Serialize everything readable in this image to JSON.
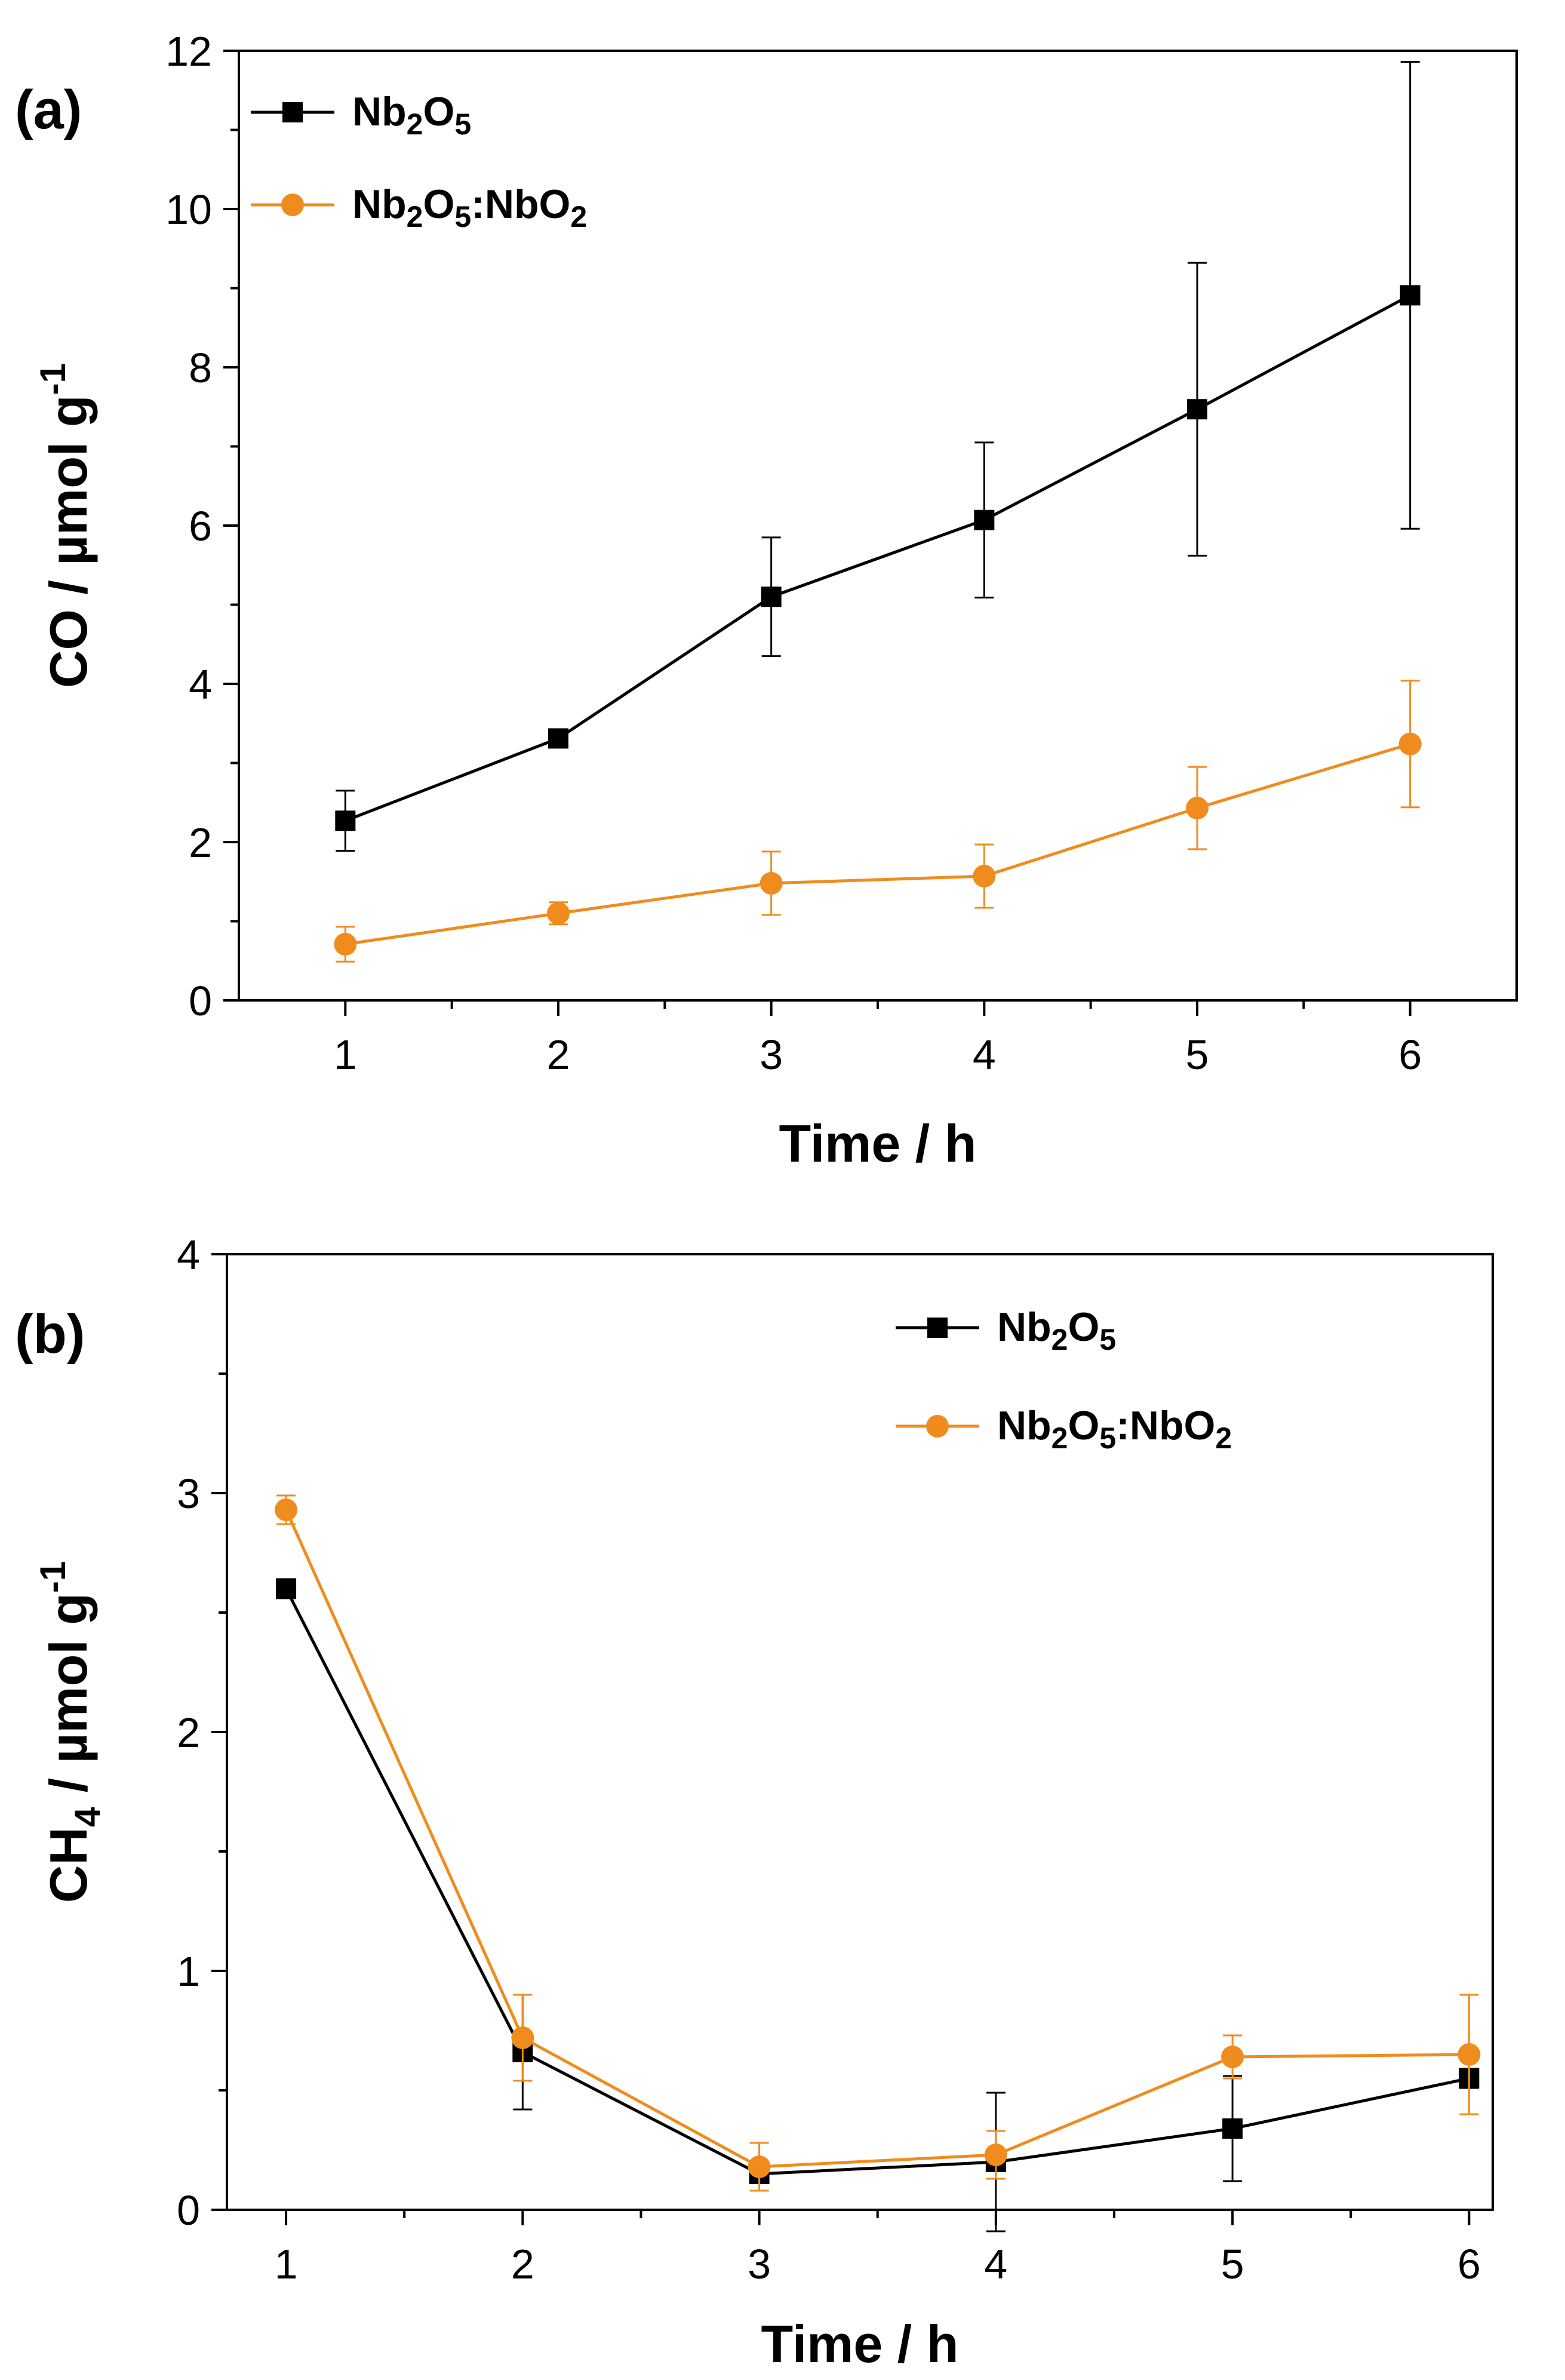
{
  "chart_data": [
    {
      "type": "line",
      "panel_label": "(a)",
      "x": [
        1,
        2,
        3,
        4,
        5,
        6
      ],
      "xlabel": "Time / h",
      "ylabel": {
        "main": "CO  / µmol g",
        "sup": "-1"
      },
      "xlim": [
        0.5,
        6.5
      ],
      "ylim": [
        0,
        12
      ],
      "xticks": [
        1,
        2,
        3,
        4,
        5,
        6
      ],
      "yticks": [
        0,
        2,
        4,
        6,
        8,
        10,
        12
      ],
      "legend_position": "top-left",
      "series": [
        {
          "name": "Nb2O5",
          "label_parts": [
            [
              "Nb",
              ""
            ],
            [
              "2",
              "sub"
            ],
            [
              "O",
              ""
            ],
            [
              "5",
              "sub"
            ]
          ],
          "marker": "square",
          "color": "#000000",
          "values": [
            2.27,
            3.31,
            5.1,
            6.07,
            7.47,
            8.91
          ],
          "errors": [
            0.38,
            0.05,
            0.75,
            0.98,
            1.85,
            2.95
          ]
        },
        {
          "name": "Nb2O5:NbO2",
          "label_parts": [
            [
              "Nb",
              ""
            ],
            [
              "2",
              "sub"
            ],
            [
              "O",
              ""
            ],
            [
              "5",
              "sub"
            ],
            [
              ":NbO",
              ""
            ],
            [
              "2",
              "sub"
            ]
          ],
          "marker": "circle",
          "color": "#f08c1e",
          "values": [
            0.71,
            1.1,
            1.48,
            1.57,
            2.43,
            3.24
          ],
          "errors": [
            0.22,
            0.14,
            0.4,
            0.4,
            0.52,
            0.8
          ]
        }
      ]
    },
    {
      "type": "line",
      "panel_label": "(b)",
      "x": [
        1,
        2,
        3,
        4,
        5,
        6
      ],
      "xlabel": "Time / h",
      "ylabel": {
        "main": "CH",
        "sub": "4",
        "rest": " / µmol g",
        "sup": "-1"
      },
      "xlim": [
        0.75,
        6.1
      ],
      "ylim": [
        0,
        4
      ],
      "xticks": [
        1,
        2,
        3,
        4,
        5,
        6
      ],
      "yticks": [
        0,
        1,
        2,
        3,
        4
      ],
      "legend_position": "top-right",
      "series": [
        {
          "name": "Nb2O5",
          "label_parts": [
            [
              "Nb",
              ""
            ],
            [
              "2",
              "sub"
            ],
            [
              "O",
              ""
            ],
            [
              "5",
              "sub"
            ]
          ],
          "marker": "square",
          "color": "#000000",
          "values": [
            2.6,
            0.66,
            0.15,
            0.2,
            0.34,
            0.55
          ],
          "errors": [
            0.04,
            0.24,
            0.02,
            0.29,
            0.22,
            0.04
          ]
        },
        {
          "name": "Nb2O5:NbO2",
          "label_parts": [
            [
              "Nb",
              ""
            ],
            [
              "2",
              "sub"
            ],
            [
              "O",
              ""
            ],
            [
              "5",
              "sub"
            ],
            [
              ":NbO",
              ""
            ],
            [
              "2",
              "sub"
            ]
          ],
          "marker": "circle",
          "color": "#f08c1e",
          "values": [
            2.93,
            0.72,
            0.18,
            0.23,
            0.64,
            0.65
          ],
          "errors": [
            0.06,
            0.18,
            0.1,
            0.1,
            0.09,
            0.25
          ]
        }
      ]
    }
  ]
}
